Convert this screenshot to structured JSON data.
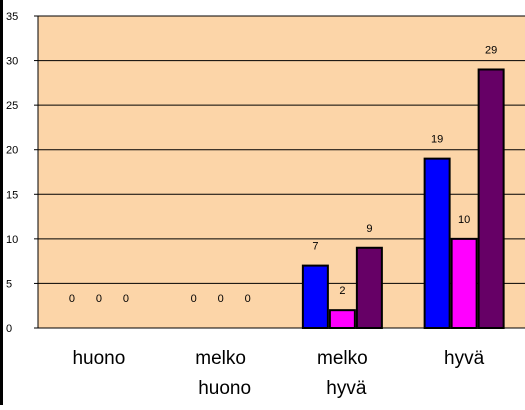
{
  "chart_data": {
    "type": "bar",
    "categories": [
      "huono",
      "melko huono",
      "melko hyvä",
      "hyvä"
    ],
    "category_lines": [
      [
        "huono"
      ],
      [
        "melko",
        "huono"
      ],
      [
        "melko",
        "hyvä"
      ],
      [
        "hyvä"
      ]
    ],
    "series": [
      {
        "values": [
          0,
          0,
          7,
          19
        ],
        "color": "#0000ff"
      },
      {
        "values": [
          0,
          0,
          2,
          10
        ],
        "color": "#ff00ff"
      },
      {
        "values": [
          0,
          0,
          9,
          29
        ],
        "color": "#660066"
      }
    ],
    "ylim": [
      0,
      35
    ],
    "yticks": [
      0,
      5,
      10,
      15,
      20,
      25,
      30,
      35
    ],
    "grid": true,
    "legend": "none",
    "plot_background": "#fcd5a8"
  }
}
